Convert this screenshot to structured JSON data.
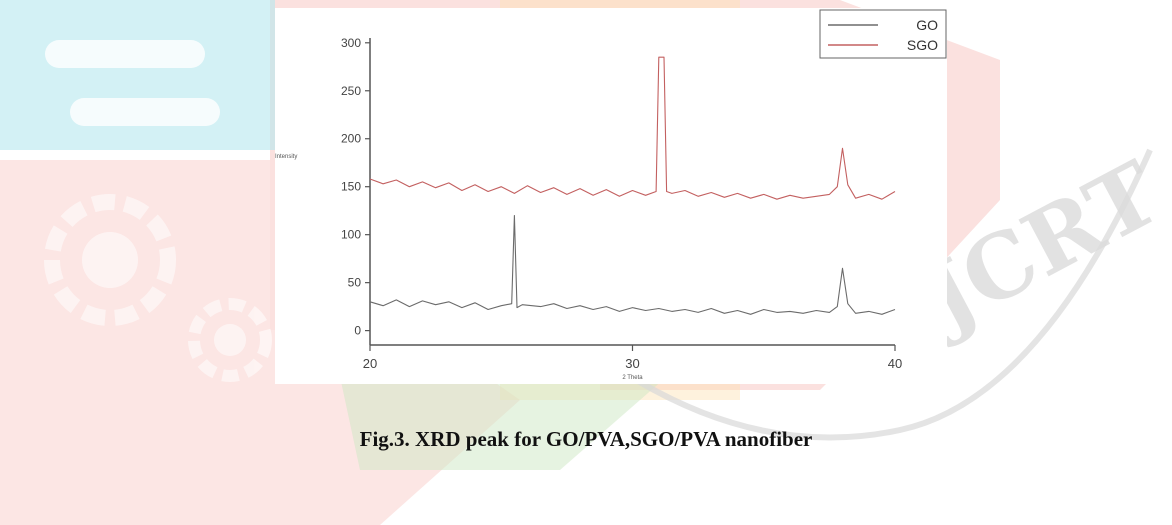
{
  "caption": "Fig.3. XRD peak for GO/PVA,SGO/PVA nanofiber",
  "watermark": {
    "text": "IJCRT"
  },
  "chart_data": {
    "type": "line",
    "xlabel": "2 Theta",
    "ylabel": "Intensity",
    "xlim": [
      20,
      40
    ],
    "ylim": [
      -15,
      305
    ],
    "xticks": [
      "20",
      "30",
      "40"
    ],
    "yticks": [
      "0",
      "50",
      "100",
      "150",
      "200",
      "250",
      "300"
    ],
    "grid": false,
    "legend_position": "top-right",
    "series": [
      {
        "name": "GO",
        "color": "#6b6b6b",
        "x": [
          20.0,
          20.5,
          21.0,
          21.5,
          22.0,
          22.5,
          23.0,
          23.5,
          24.0,
          24.5,
          25.0,
          25.4,
          25.5,
          25.6,
          25.8,
          26.5,
          27.0,
          27.5,
          28.0,
          28.5,
          29.0,
          29.5,
          30.0,
          30.5,
          31.0,
          31.5,
          32.0,
          32.5,
          33.0,
          33.5,
          34.0,
          34.5,
          35.0,
          35.5,
          36.0,
          36.5,
          37.0,
          37.5,
          37.8,
          38.0,
          38.2,
          38.5,
          39.0,
          39.5,
          40.0
        ],
        "values": [
          30,
          26,
          32,
          25,
          31,
          27,
          30,
          24,
          29,
          22,
          26,
          28,
          120,
          24,
          27,
          25,
          28,
          23,
          26,
          22,
          25,
          20,
          24,
          21,
          23,
          20,
          22,
          19,
          23,
          18,
          21,
          17,
          22,
          19,
          20,
          18,
          21,
          19,
          25,
          65,
          28,
          18,
          20,
          17,
          22
        ]
      },
      {
        "name": "SGO",
        "color": "#c36060",
        "x": [
          20.0,
          20.5,
          21.0,
          21.5,
          22.0,
          22.5,
          23.0,
          23.5,
          24.0,
          24.5,
          25.0,
          25.5,
          26.0,
          26.5,
          27.0,
          27.5,
          28.0,
          28.5,
          29.0,
          29.5,
          30.0,
          30.5,
          30.9,
          31.0,
          31.2,
          31.3,
          31.5,
          32.0,
          32.5,
          33.0,
          33.5,
          34.0,
          34.5,
          35.0,
          35.5,
          36.0,
          36.5,
          37.0,
          37.5,
          37.8,
          38.0,
          38.2,
          38.5,
          39.0,
          39.5,
          40.0
        ],
        "values": [
          158,
          153,
          157,
          150,
          155,
          149,
          154,
          146,
          152,
          145,
          150,
          143,
          151,
          144,
          149,
          142,
          148,
          141,
          147,
          140,
          146,
          141,
          145,
          285,
          285,
          145,
          143,
          146,
          140,
          144,
          139,
          143,
          138,
          142,
          137,
          141,
          138,
          140,
          142,
          150,
          190,
          152,
          138,
          142,
          137,
          145
        ]
      }
    ]
  }
}
